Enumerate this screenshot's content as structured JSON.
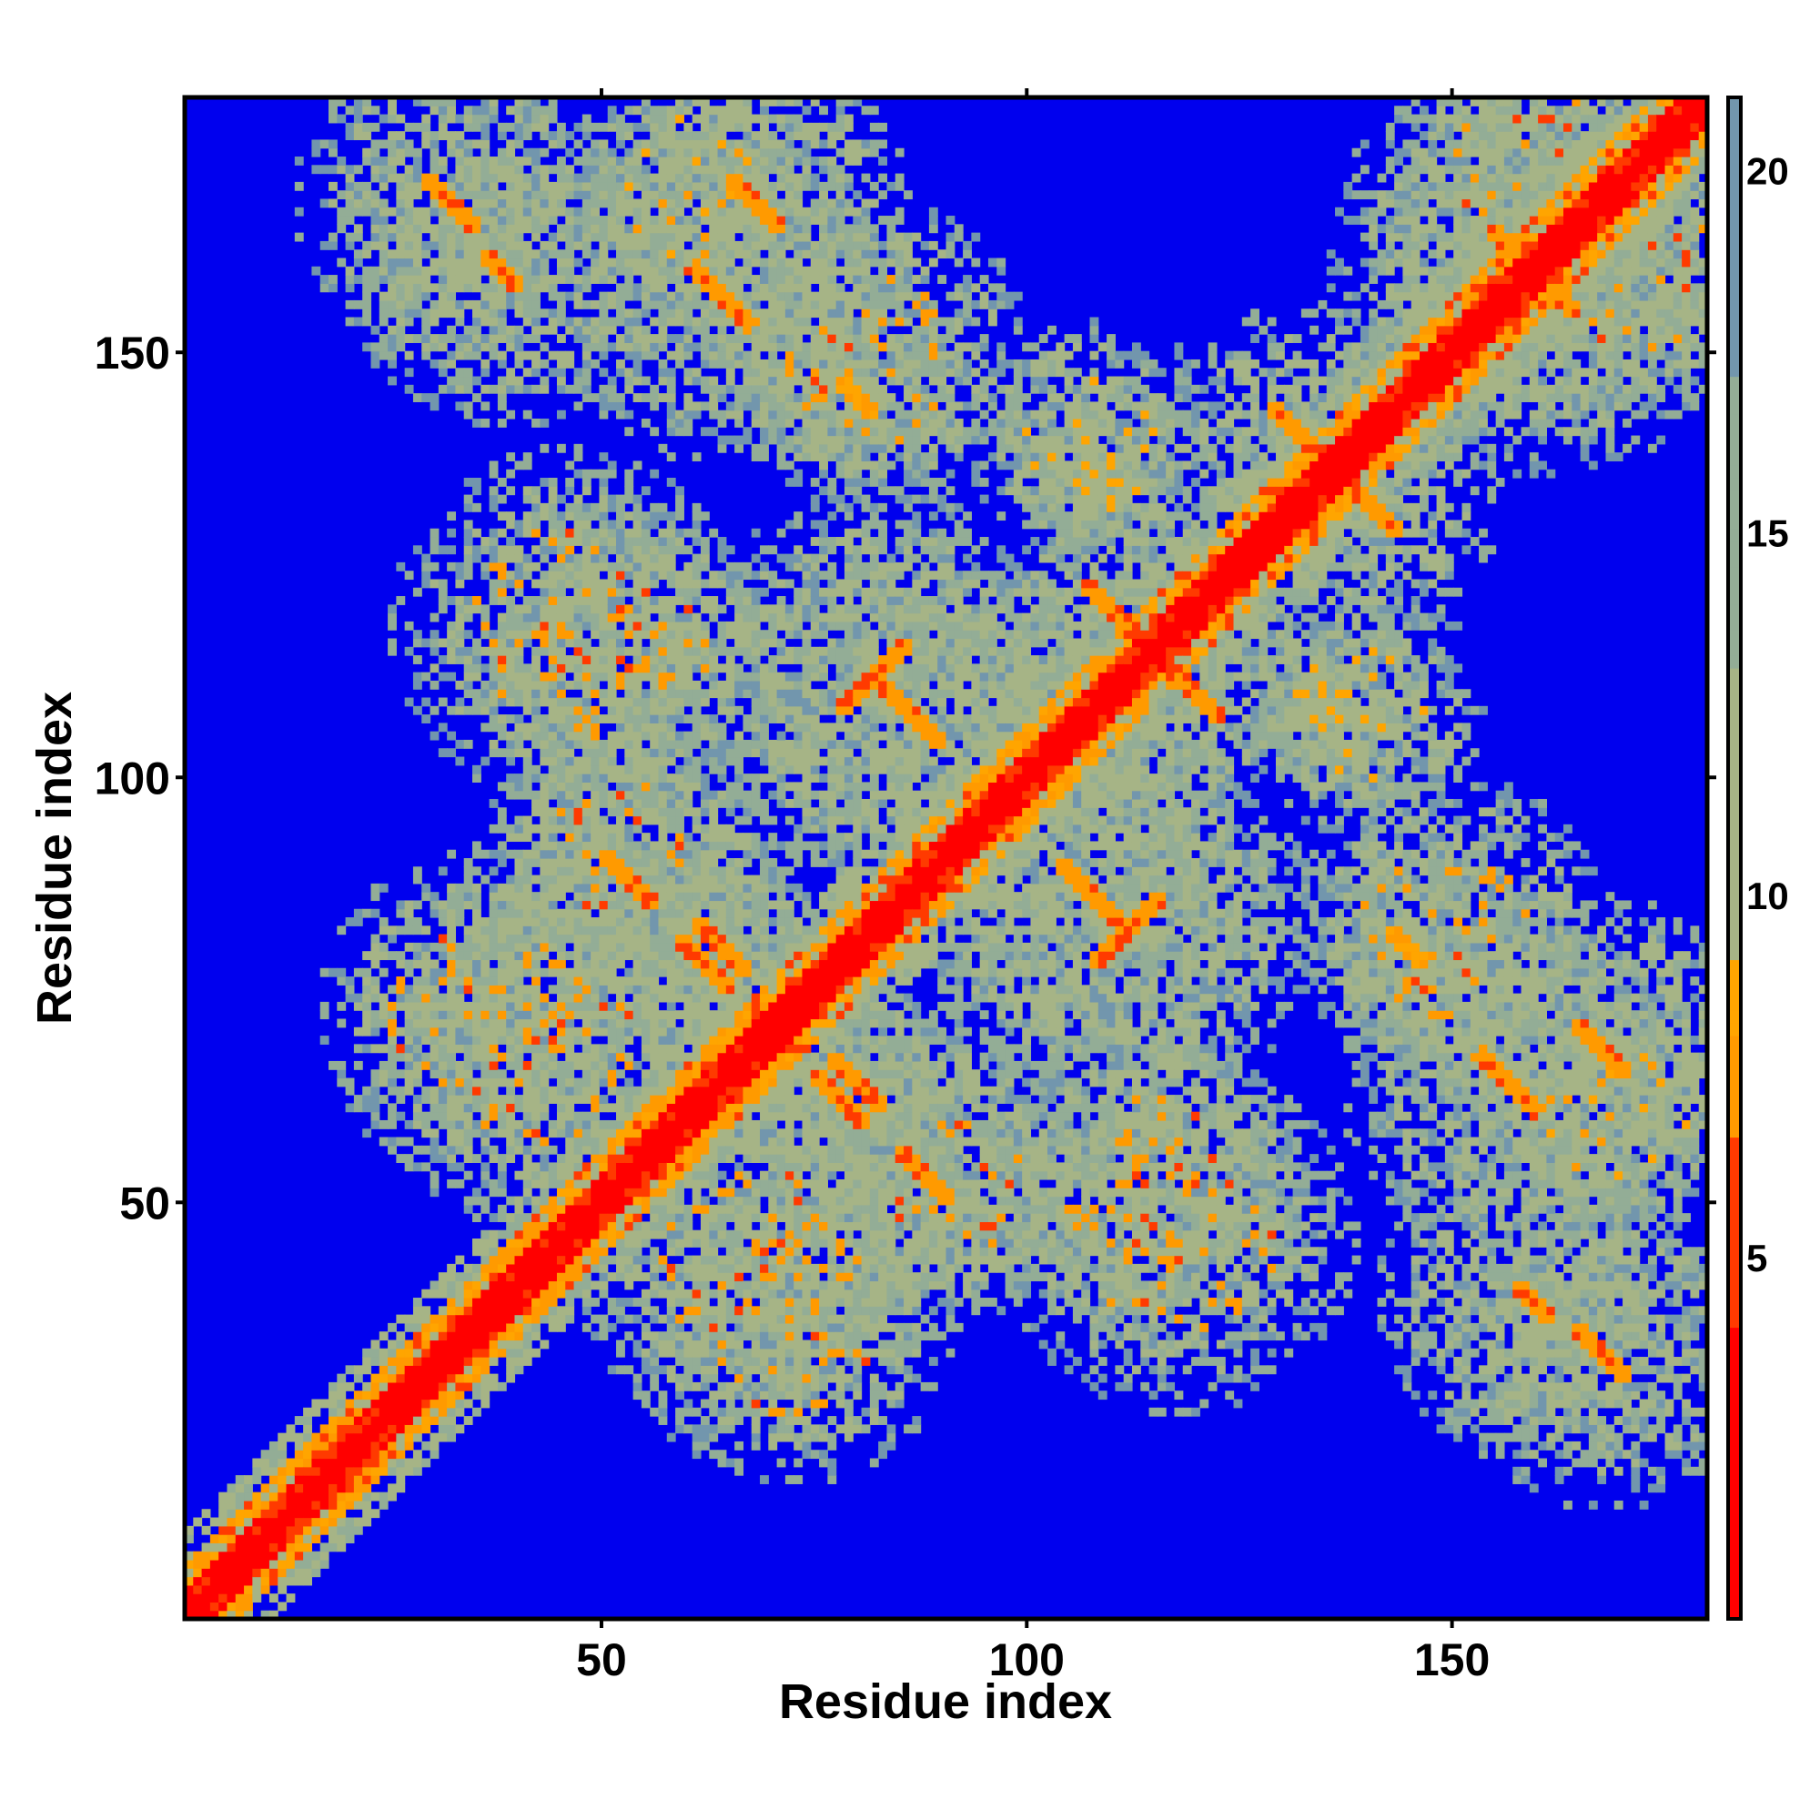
{
  "chart_data": {
    "type": "heatmap",
    "title": "",
    "xlabel": "Residue index",
    "ylabel": "Residue index",
    "n_residues": 180,
    "xlim": [
      1,
      180
    ],
    "ylim": [
      1,
      180
    ],
    "x_ticks": [
      50,
      100,
      150
    ],
    "y_ticks": [
      50,
      100,
      150
    ],
    "value_range": [
      0,
      21
    ],
    "cutoff_value": 21,
    "colorbar": {
      "ticks": [
        5,
        10,
        15,
        20
      ],
      "colors": [
        {
          "value": 0,
          "color": "#ff0000"
        },
        {
          "value": 4,
          "color": "#ff3a00"
        },
        {
          "value": 6.5,
          "color": "#ff9a00"
        },
        {
          "value": 8,
          "color": "#ffa500"
        },
        {
          "value": 9,
          "color": "#a6b486"
        },
        {
          "value": 13,
          "color": "#93ad96"
        },
        {
          "value": 17,
          "color": "#7296ad"
        },
        {
          "value": 21,
          "color": "#0000ee"
        }
      ]
    },
    "background_color": "#0000ee",
    "diagonal_band": {
      "description": "contact diagonal",
      "min_value": 1.5
    },
    "contact_clusters": [
      {
        "x": 32,
        "y": 168,
        "radius": 15,
        "min_value": 6,
        "orientation": "anti",
        "length": 6
      },
      {
        "x": 64,
        "y": 157,
        "radius": 16,
        "min_value": 6,
        "orientation": "anti",
        "length": 7
      },
      {
        "x": 80,
        "y": 145,
        "radius": 10,
        "min_value": 7,
        "orientation": "anti",
        "length": 4
      },
      {
        "x": 46,
        "y": 118,
        "radius": 17,
        "min_value": 6,
        "orientation": "none",
        "length": 0
      },
      {
        "x": 82,
        "y": 112,
        "radius": 18,
        "min_value": 6,
        "orientation": "para",
        "length": 8
      },
      {
        "x": 112,
        "y": 118,
        "radius": 14,
        "min_value": 6,
        "orientation": "anti",
        "length": 10
      },
      {
        "x": 108,
        "y": 137,
        "radius": 8,
        "min_value": 8,
        "orientation": "none",
        "length": 0
      },
      {
        "x": 140,
        "y": 108,
        "radius": 12,
        "min_value": 8,
        "orientation": "none",
        "length": 0
      },
      {
        "x": 53,
        "y": 88,
        "radius": 15,
        "min_value": 6,
        "orientation": "anti",
        "length": 6
      },
      {
        "x": 36,
        "y": 72,
        "radius": 16,
        "min_value": 6,
        "orientation": "none",
        "length": 0
      },
      {
        "x": 64,
        "y": 80,
        "radius": 10,
        "min_value": 6,
        "orientation": "anti",
        "length": 6
      },
      {
        "x": 108,
        "y": 86,
        "radius": 18,
        "min_value": 6,
        "orientation": "anti",
        "length": 8
      },
      {
        "x": 78,
        "y": 62,
        "radius": 12,
        "min_value": 6,
        "orientation": "anti",
        "length": 6
      },
      {
        "x": 68,
        "y": 42,
        "radius": 17,
        "min_value": 6,
        "orientation": "none",
        "length": 0
      },
      {
        "x": 92,
        "y": 52,
        "radius": 12,
        "min_value": 6,
        "orientation": "none",
        "length": 0
      },
      {
        "x": 115,
        "y": 52,
        "radius": 15,
        "min_value": 6,
        "orientation": "none",
        "length": 0
      },
      {
        "x": 133,
        "y": 140,
        "radius": 13,
        "min_value": 6,
        "orientation": "anti",
        "length": 8
      },
      {
        "x": 162,
        "y": 158,
        "radius": 18,
        "min_value": 6,
        "orientation": "anti",
        "length": 6
      },
      {
        "x": 160,
        "y": 172,
        "radius": 14,
        "min_value": 6,
        "orientation": "none",
        "length": 0
      },
      {
        "x": 150,
        "y": 82,
        "radius": 15,
        "min_value": 6,
        "orientation": "none",
        "length": 0
      },
      {
        "x": 168,
        "y": 68,
        "radius": 15,
        "min_value": 6,
        "orientation": "anti",
        "length": 6
      },
      {
        "x": 160,
        "y": 38,
        "radius": 15,
        "min_value": 6,
        "orientation": "anti",
        "length": 4
      },
      {
        "x": 170,
        "y": 60,
        "radius": 12,
        "min_value": 7,
        "orientation": "none",
        "length": 0
      }
    ],
    "grid": false,
    "legend": "right (colorbar)"
  }
}
